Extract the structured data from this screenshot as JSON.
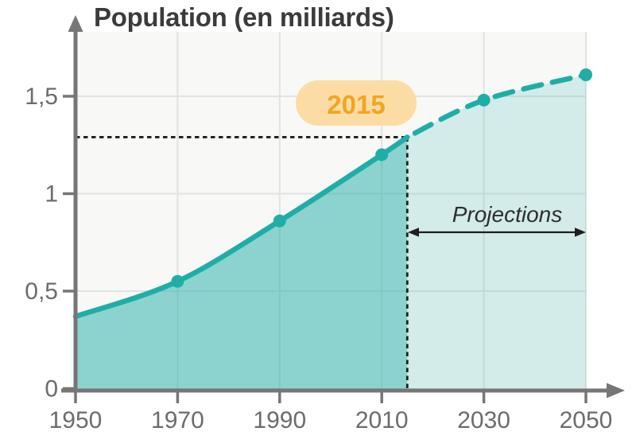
{
  "title": "Population (en milliards)",
  "chart_data": {
    "type": "area",
    "title": "Population (en milliards)",
    "xlabel": "",
    "ylabel": "Population (en milliards)",
    "xlim": [
      1950,
      2050
    ],
    "ylim": [
      0,
      1.75
    ],
    "grid": true,
    "legend_position": "none",
    "x_ticks": [
      {
        "value": 1950,
        "label": "1950"
      },
      {
        "value": 1970,
        "label": "1970"
      },
      {
        "value": 1990,
        "label": "1990"
      },
      {
        "value": 2010,
        "label": "2010"
      },
      {
        "value": 2030,
        "label": "2030"
      },
      {
        "value": 2050,
        "label": "2050"
      }
    ],
    "y_ticks": [
      {
        "value": 0,
        "label": "0"
      },
      {
        "value": 0.5,
        "label": "0,5"
      },
      {
        "value": 1,
        "label": "1"
      },
      {
        "value": 1.5,
        "label": "1,5"
      }
    ],
    "series": [
      {
        "id": "observed-solid",
        "line_style": "solid",
        "points": [
          [
            1950,
            0.37
          ],
          [
            1970,
            0.55
          ],
          [
            1990,
            0.86
          ],
          [
            2010,
            1.2
          ],
          [
            2015,
            1.29
          ]
        ]
      },
      {
        "id": "projection-dashed",
        "line_style": "dashed",
        "points": [
          [
            2015,
            1.29
          ],
          [
            2030,
            1.48
          ],
          [
            2050,
            1.61
          ]
        ]
      }
    ],
    "markers": [
      [
        1970,
        0.55
      ],
      [
        1990,
        0.86
      ],
      [
        2010,
        1.2
      ],
      [
        2030,
        1.48
      ],
      [
        2050,
        1.61
      ]
    ]
  },
  "annotations": {
    "badge_label": "2015",
    "marker": {
      "year": 2015,
      "value": 1.29
    },
    "projections_label": "Projections"
  },
  "colors": {
    "line_teal": "#1FAEA7",
    "fill_observed_opacity": "0.5",
    "fill_projection_opacity": "0.17",
    "plot_background": "#f8f8f7",
    "gridline": "#e2e2e2",
    "axis_gray": "#767676",
    "tick_text": "#6c6c6c",
    "title_text": "#3b3b3b",
    "dashed_marker": "#1e1e1e",
    "badge_background": "#fbdca4",
    "badge_text": "#f2a51f",
    "projection_arrow": "#1e1e1e"
  }
}
